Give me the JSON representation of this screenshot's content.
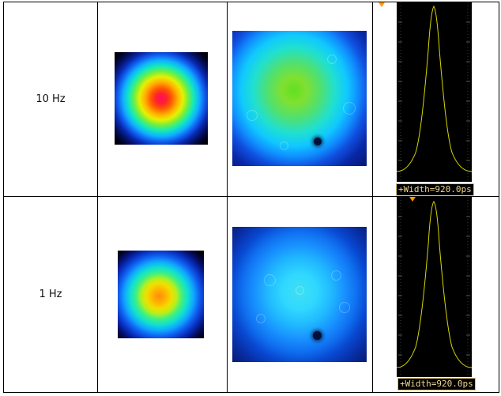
{
  "table": {
    "rows": [
      {
        "frequency": "10 Hz",
        "scope_readout": "+Width=920.0ps"
      },
      {
        "frequency": "1 Hz",
        "scope_readout": "+Width=920.0ps"
      }
    ]
  },
  "colors": {
    "scope_background": "#000000",
    "trace": "#d8d800",
    "readout_text": "#f0d890",
    "marker": "#ff9a00"
  }
}
